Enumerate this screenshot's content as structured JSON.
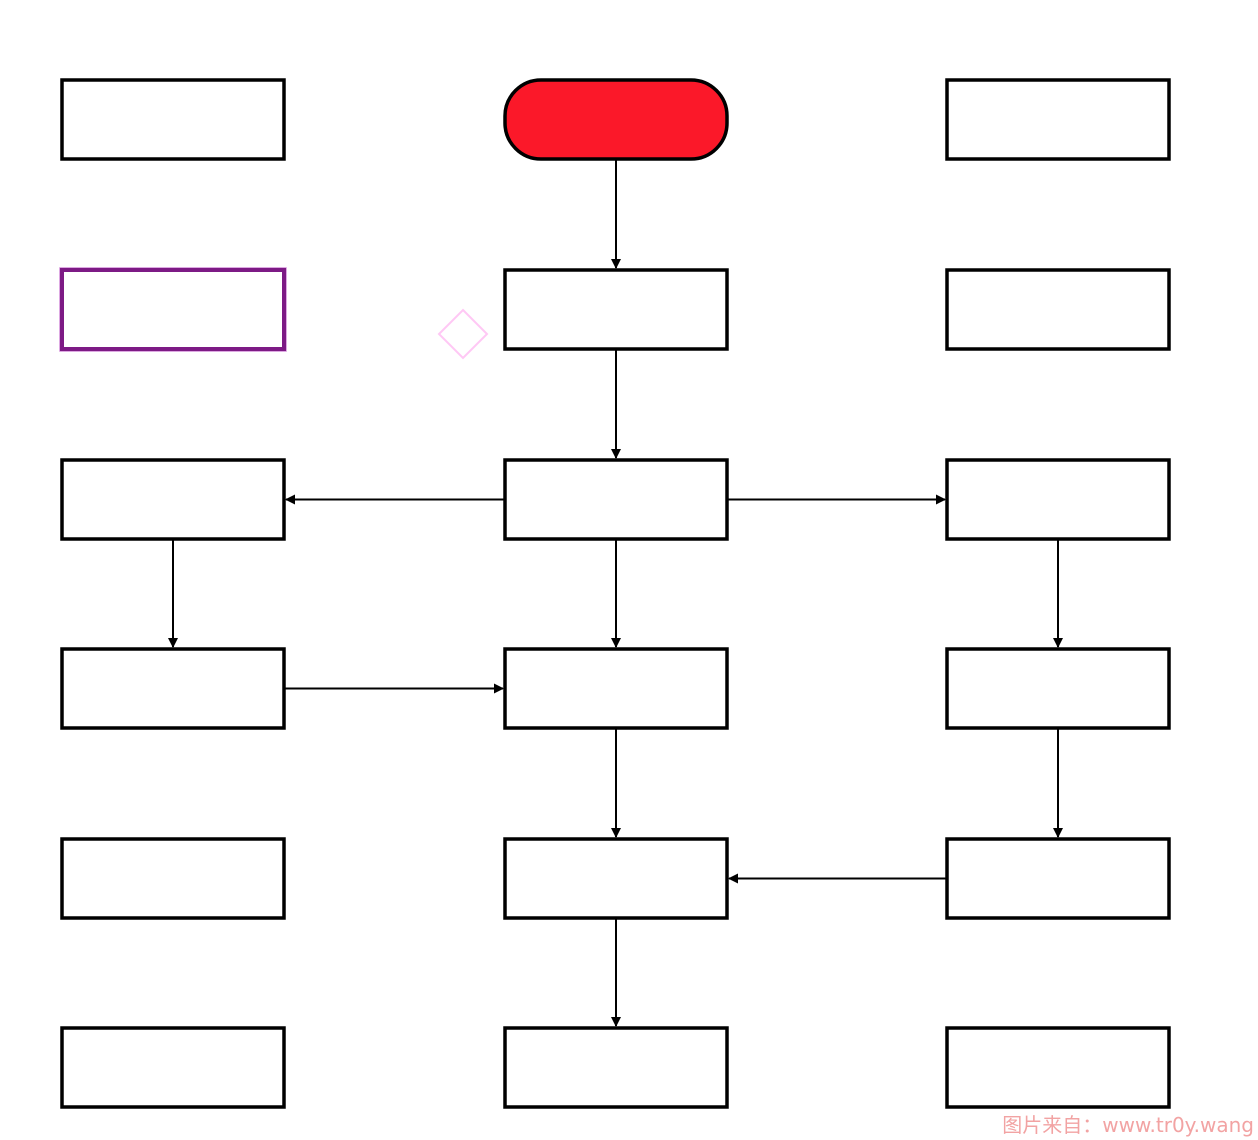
{
  "diagram": {
    "type": "flowchart",
    "colors": {
      "start_fill": "#fb1829",
      "node_fill": "#ffffff",
      "stroke": "#000000",
      "selected_stroke": "#7d1a85",
      "anchor_handle": "#ffc8f5",
      "watermark": "#f2a3a3"
    },
    "nodes": [
      {
        "id": "r0c0",
        "shape": "rect",
        "label": ""
      },
      {
        "id": "start",
        "shape": "terminator",
        "label": ""
      },
      {
        "id": "r0c2",
        "shape": "rect",
        "label": ""
      },
      {
        "id": "r1c0",
        "shape": "rect",
        "label": "",
        "selected": true
      },
      {
        "id": "r1c1",
        "shape": "rect",
        "label": ""
      },
      {
        "id": "r1c2",
        "shape": "rect",
        "label": ""
      },
      {
        "id": "r2c0",
        "shape": "rect",
        "label": ""
      },
      {
        "id": "r2c1",
        "shape": "rect",
        "label": ""
      },
      {
        "id": "r2c2",
        "shape": "rect",
        "label": ""
      },
      {
        "id": "r3c0",
        "shape": "rect",
        "label": ""
      },
      {
        "id": "r3c1",
        "shape": "rect",
        "label": ""
      },
      {
        "id": "r3c2",
        "shape": "rect",
        "label": ""
      },
      {
        "id": "r4c0",
        "shape": "rect",
        "label": ""
      },
      {
        "id": "r4c1",
        "shape": "rect",
        "label": ""
      },
      {
        "id": "r4c2",
        "shape": "rect",
        "label": ""
      },
      {
        "id": "r5c0",
        "shape": "rect",
        "label": ""
      },
      {
        "id": "r5c1",
        "shape": "rect",
        "label": ""
      },
      {
        "id": "r5c2",
        "shape": "rect",
        "label": ""
      }
    ],
    "edges": [
      {
        "from": "start",
        "to": "r1c1"
      },
      {
        "from": "r1c1",
        "to": "r2c1"
      },
      {
        "from": "r2c1",
        "to": "r2c0"
      },
      {
        "from": "r2c1",
        "to": "r2c2"
      },
      {
        "from": "r2c1",
        "to": "r3c1"
      },
      {
        "from": "r2c0",
        "to": "r3c0"
      },
      {
        "from": "r3c0",
        "to": "r3c1"
      },
      {
        "from": "r2c2",
        "to": "r3c2"
      },
      {
        "from": "r3c1",
        "to": "r4c1"
      },
      {
        "from": "r3c2",
        "to": "r4c2"
      },
      {
        "from": "r4c2",
        "to": "r4c1"
      },
      {
        "from": "r4c1",
        "to": "r5c1"
      }
    ]
  },
  "watermark": {
    "text": "图片来自：www.tr0y.wang"
  }
}
